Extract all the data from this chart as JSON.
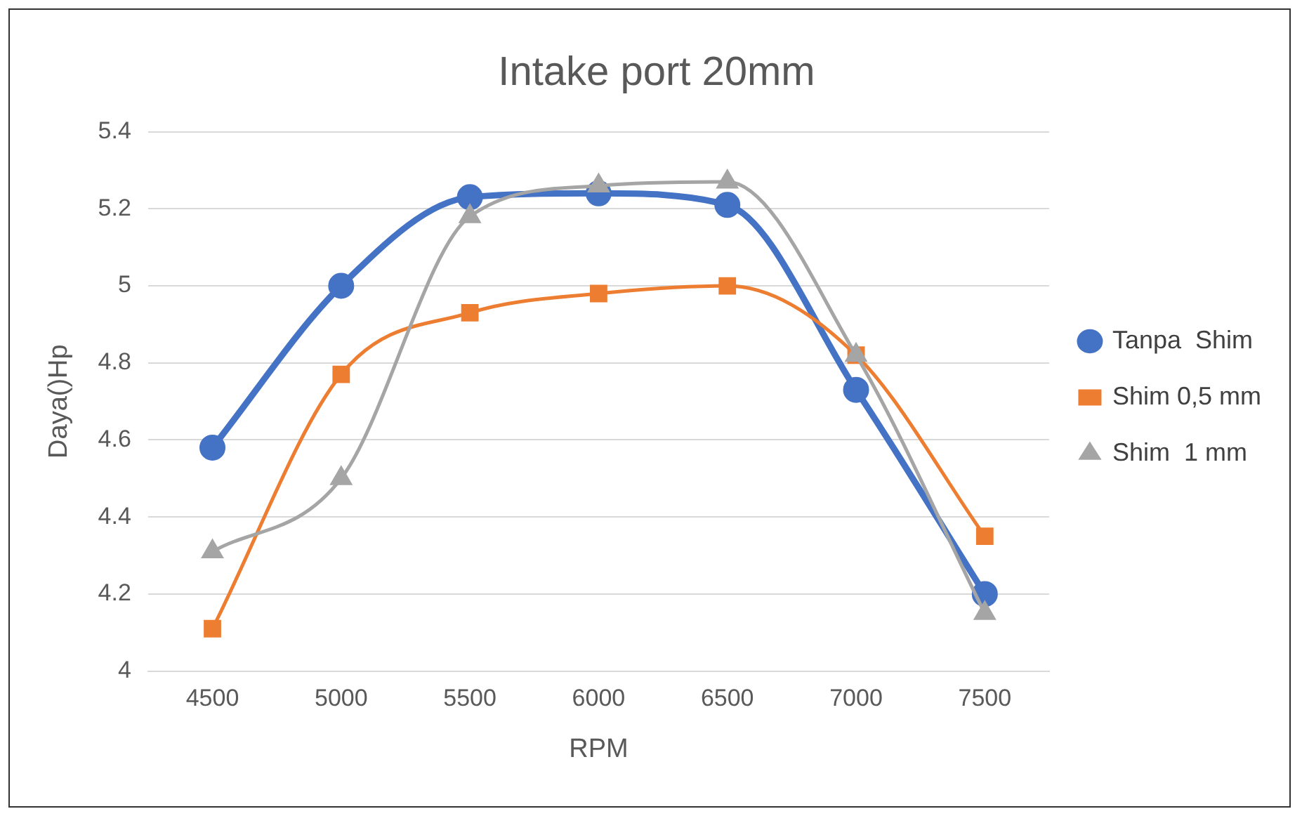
{
  "chart_data": {
    "type": "line",
    "title": "Intake port 20mm",
    "xlabel": "RPM",
    "ylabel": "Daya()Hp",
    "categories": [
      "4500",
      "5000",
      "5500",
      "6000",
      "6500",
      "7000",
      "7500"
    ],
    "series": [
      {
        "name": "Tanpa  Shim",
        "color": "#4472c4",
        "marker": "circle",
        "values": [
          4.58,
          5.0,
          5.23,
          5.24,
          5.21,
          4.73,
          4.2
        ]
      },
      {
        "name": "Shim 0,5 mm",
        "color": "#ed7d31",
        "marker": "square",
        "values": [
          4.11,
          4.77,
          4.93,
          4.98,
          5.0,
          4.82,
          4.35
        ]
      },
      {
        "name": "Shim  1 mm",
        "color": "#a5a5a5",
        "marker": "triangle",
        "values": [
          4.31,
          4.5,
          5.18,
          5.26,
          5.27,
          4.82,
          4.15
        ]
      }
    ],
    "ylim": [
      4,
      5.4
    ],
    "yticks": [
      4,
      4.2,
      4.4,
      4.6,
      4.8,
      5,
      5.2,
      5.4
    ],
    "grid": "y",
    "legend": "right"
  }
}
